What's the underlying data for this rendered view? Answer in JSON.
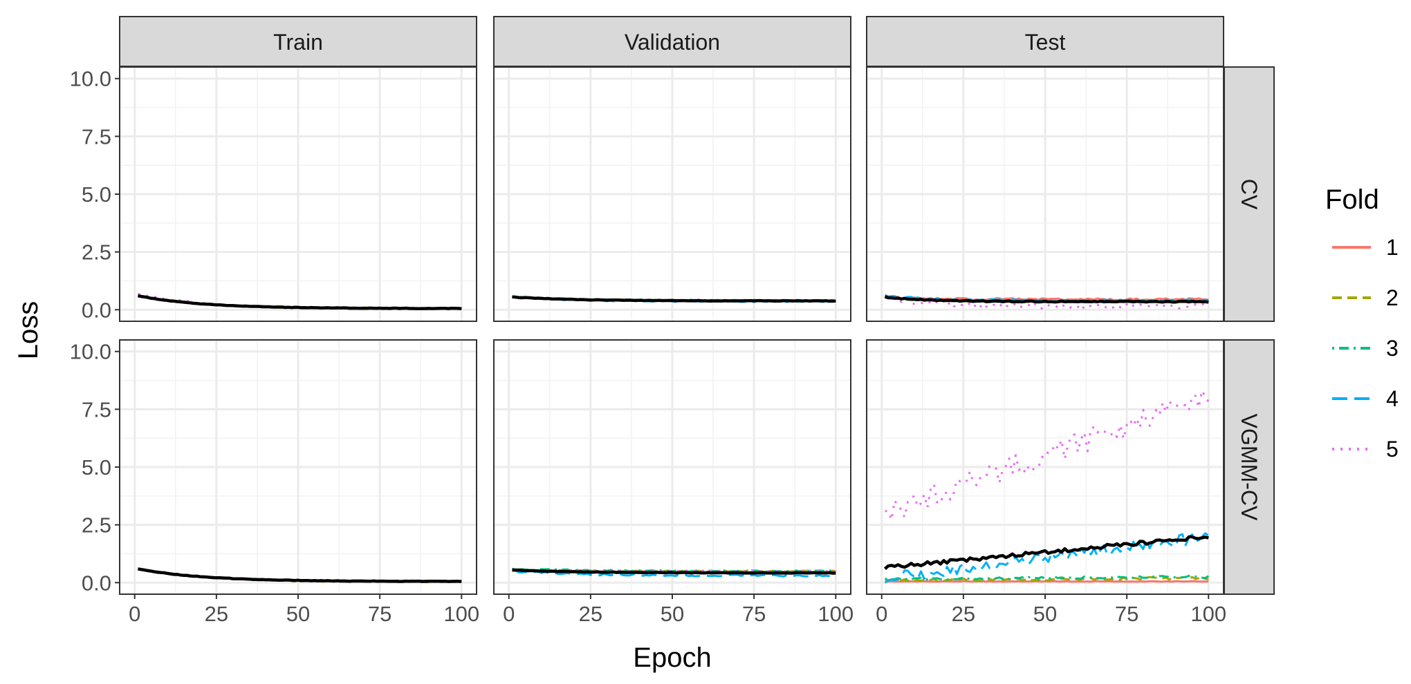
{
  "chart_data": {
    "type": "line",
    "layout": "facet-grid",
    "xlabel": "Epoch",
    "ylabel": "Loss",
    "xlim": [
      0,
      100
    ],
    "ylim": [
      0,
      10
    ],
    "x_ticks": [
      0,
      25,
      50,
      75,
      100
    ],
    "x_tick_labels": [
      "0",
      "25",
      "50",
      "75",
      "100"
    ],
    "y_ticks": [
      0,
      2.5,
      5,
      7.5,
      10
    ],
    "y_tick_labels": [
      "0.0",
      "2.5",
      "5.0",
      "7.5",
      "10.0"
    ],
    "grid": true,
    "legend_position": "right",
    "facet_columns": [
      "Train",
      "Validation",
      "Test"
    ],
    "facet_rows": [
      "CV",
      "VGMM-CV"
    ],
    "epochs": [
      1,
      100
    ],
    "legend": {
      "title": "Fold",
      "entries": [
        {
          "label": "1",
          "color": "#F8766D",
          "dash": "solid"
        },
        {
          "label": "2",
          "color": "#A3A500",
          "dash": "dashed"
        },
        {
          "label": "3",
          "color": "#00BF7D",
          "dash": "dotdash"
        },
        {
          "label": "4",
          "color": "#00B0F6",
          "dash": "longdash"
        },
        {
          "label": "5",
          "color": "#E76BF3",
          "dash": "dotted"
        }
      ]
    },
    "mean_line_color": "#000000",
    "panels": [
      {
        "row": "CV",
        "col": "Train",
        "series": [
          {
            "fold": "1",
            "start": 0.6,
            "end": 0.05,
            "noise": 0.02
          },
          {
            "fold": "2",
            "start": 0.6,
            "end": 0.05,
            "noise": 0.03
          },
          {
            "fold": "3",
            "start": 0.6,
            "end": 0.05,
            "noise": 0.02
          },
          {
            "fold": "4",
            "start": 0.6,
            "end": 0.05,
            "noise": 0.02
          },
          {
            "fold": "5",
            "start": 0.7,
            "end": 0.05,
            "noise": 0.02
          },
          {
            "fold": "mean",
            "start": 0.6,
            "end": 0.05,
            "noise": 0.01
          }
        ]
      },
      {
        "row": "CV",
        "col": "Validation",
        "series": [
          {
            "fold": "1",
            "start": 0.55,
            "end": 0.38,
            "noise": 0.02
          },
          {
            "fold": "2",
            "start": 0.55,
            "end": 0.4,
            "noise": 0.02
          },
          {
            "fold": "3",
            "start": 0.55,
            "end": 0.4,
            "noise": 0.02
          },
          {
            "fold": "4",
            "start": 0.55,
            "end": 0.35,
            "noise": 0.03
          },
          {
            "fold": "5",
            "start": 0.55,
            "end": 0.4,
            "noise": 0.02
          },
          {
            "fold": "mean",
            "start": 0.55,
            "end": 0.38,
            "noise": 0.01
          }
        ]
      },
      {
        "row": "CV",
        "col": "Test",
        "series": [
          {
            "fold": "1",
            "start": 0.55,
            "end": 0.45,
            "noise": 0.04
          },
          {
            "fold": "2",
            "start": 0.55,
            "end": 0.35,
            "noise": 0.03
          },
          {
            "fold": "3",
            "start": 0.55,
            "end": 0.35,
            "noise": 0.03
          },
          {
            "fold": "4",
            "start": 0.6,
            "end": 0.4,
            "noise": 0.05
          },
          {
            "fold": "5",
            "start": 0.6,
            "end": 0.15,
            "noise": 0.12
          },
          {
            "fold": "mean",
            "start": 0.55,
            "end": 0.35,
            "noise": 0.02
          }
        ]
      },
      {
        "row": "VGMM-CV",
        "col": "Train",
        "series": [
          {
            "fold": "1",
            "start": 0.6,
            "end": 0.05,
            "noise": 0.02
          },
          {
            "fold": "2",
            "start": 0.6,
            "end": 0.05,
            "noise": 0.04
          },
          {
            "fold": "3",
            "start": 0.6,
            "end": 0.05,
            "noise": 0.02
          },
          {
            "fold": "4",
            "start": 0.6,
            "end": 0.05,
            "noise": 0.02
          },
          {
            "fold": "5",
            "start": 0.6,
            "end": 0.05,
            "noise": 0.02
          },
          {
            "fold": "mean",
            "start": 0.6,
            "end": 0.05,
            "noise": 0.01
          }
        ]
      },
      {
        "row": "VGMM-CV",
        "col": "Validation",
        "series": [
          {
            "fold": "1",
            "start": 0.55,
            "end": 0.45,
            "noise": 0.02
          },
          {
            "fold": "2",
            "start": 0.55,
            "end": 0.5,
            "noise": 0.02
          },
          {
            "fold": "3",
            "start": 0.6,
            "end": 0.5,
            "noise": 0.03
          },
          {
            "fold": "4",
            "start": 0.5,
            "end": 0.3,
            "noise": 0.04
          },
          {
            "fold": "5",
            "start": 0.55,
            "end": 0.5,
            "noise": 0.02
          },
          {
            "fold": "mean",
            "start": 0.55,
            "end": 0.42,
            "noise": 0.01
          }
        ]
      },
      {
        "row": "VGMM-CV",
        "col": "Test",
        "series": [
          {
            "fold": "1",
            "start": 0.05,
            "end": 0.05,
            "noise": 0.01
          },
          {
            "fold": "2",
            "start": 0.1,
            "end": 0.2,
            "noise": 0.06
          },
          {
            "fold": "3",
            "start": 0.15,
            "end": 0.25,
            "noise": 0.05
          },
          {
            "fold": "4",
            "start": 0.2,
            "end": 2.0,
            "noise": 0.25
          },
          {
            "fold": "5",
            "start": 3.0,
            "end": 8.0,
            "noise": 0.5
          },
          {
            "fold": "mean",
            "start": 0.65,
            "end": 2.0,
            "noise": 0.08
          }
        ]
      }
    ]
  }
}
